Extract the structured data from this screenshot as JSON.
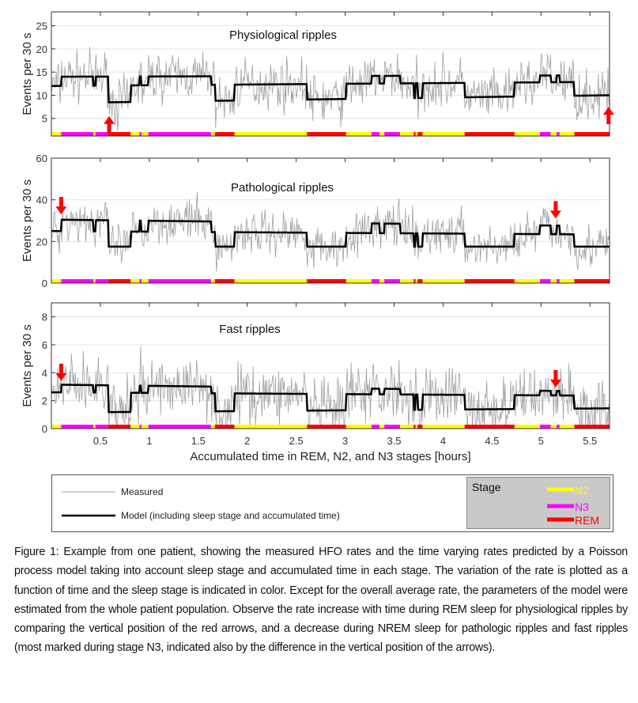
{
  "figure": {
    "caption": " Figure 1: Example from one patient, showing the measured HFO rates and the time varying rates predicted by a Poisson process model taking into account sleep stage and accumulated time in each stage. The variation of the rate is plotted as a function of time and the sleep stage is indicated in color. Except for the overall average rate, the parameters of the model were estimated from the whole patient population. Observe the rate increase with time during REM sleep for physiological ripples by comparing the vertical position of the red arrows, and a decrease during NREM sleep for pathologic ripples and fast ripples (most marked during stage N3, indicated also by the difference in the vertical position of the arrows)."
  },
  "legend": {
    "measured_label": "Measured",
    "model_label": "Model (including sleep stage and accumulated time)",
    "stage_title": "Stage",
    "stages": [
      {
        "label": "N2",
        "color": "#ffff00"
      },
      {
        "label": "N3",
        "color": "#ff00ff"
      },
      {
        "label": "REM",
        "color": "#ff0000"
      }
    ],
    "measured_color": "#a0a0a0",
    "model_color": "#000000"
  },
  "chart_data": [
    {
      "type": "line",
      "title": "Physiological ripples",
      "ylabel": "Events per 30 s",
      "xlabel": "",
      "xlim": [
        0,
        5.7
      ],
      "ylim": [
        1.2,
        28
      ],
      "yticks": [
        5,
        10,
        15,
        20,
        25
      ],
      "xticks": [
        0.5,
        1,
        1.5,
        2,
        2.5,
        3,
        3.5,
        4,
        4.5,
        5,
        5.5
      ],
      "show_xtick_labels": false,
      "grid": true,
      "model_levels": {
        "N2": [
          12.0,
          12.9
        ],
        "N3": [
          14.0,
          14.3
        ],
        "REM": [
          8.3,
          10.0
        ]
      },
      "measured_noise": 4.0,
      "arrows": [
        {
          "x": 0.59,
          "y": 5.5,
          "direction": "up"
        },
        {
          "x": 5.69,
          "y": 7.5,
          "direction": "up"
        }
      ]
    },
    {
      "type": "line",
      "title": "Pathological ripples",
      "ylabel": "Events per 30 s",
      "xlabel": "",
      "xlim": [
        0,
        5.7
      ],
      "ylim": [
        0,
        60
      ],
      "yticks": [
        0,
        20,
        40,
        60
      ],
      "xticks": [
        0.5,
        1,
        1.5,
        2,
        2.5,
        3,
        3.5,
        4,
        4.5,
        5,
        5.5
      ],
      "show_xtick_labels": false,
      "grid": true,
      "model_levels": {
        "N2": [
          25.0,
          23.3
        ],
        "N3": [
          30.5,
          27.3
        ],
        "REM": [
          17.5,
          17.5
        ]
      },
      "measured_noise": 8.0,
      "arrows": [
        {
          "x": 0.1,
          "y": 33,
          "direction": "down"
        },
        {
          "x": 5.15,
          "y": 31,
          "direction": "down"
        }
      ]
    },
    {
      "type": "line",
      "title": "Fast ripples",
      "ylabel": "Events per 30 s",
      "xlabel": "Accumulated time in REM, N2, and N3 stages [hours]",
      "xlim": [
        0,
        5.7
      ],
      "ylim": [
        0,
        9
      ],
      "yticks": [
        0,
        2,
        4,
        6,
        8
      ],
      "xticks": [
        0.5,
        1,
        1.5,
        2,
        2.5,
        3,
        3.5,
        4,
        4.5,
        5,
        5.5
      ],
      "xtick_labels": [
        "0.5",
        "1",
        "1.5",
        "2",
        "2.5",
        "3",
        "3.5",
        "4",
        "4.5",
        "5",
        "5.5"
      ],
      "show_xtick_labels": true,
      "grid": true,
      "model_levels": {
        "N2": [
          2.6,
          2.35
        ],
        "N3": [
          3.15,
          2.65
        ],
        "REM": [
          1.15,
          1.45
        ]
      },
      "measured_noise": 1.6,
      "arrows": [
        {
          "x": 0.1,
          "y": 3.4,
          "direction": "down"
        },
        {
          "x": 5.15,
          "y": 2.95,
          "direction": "down"
        }
      ]
    }
  ],
  "stage_sequence": [
    {
      "stage": "N2",
      "start": 0.0,
      "end": 0.1
    },
    {
      "stage": "N3",
      "start": 0.1,
      "end": 0.43
    },
    {
      "stage": "N2",
      "start": 0.43,
      "end": 0.45
    },
    {
      "stage": "N3",
      "start": 0.45,
      "end": 0.58
    },
    {
      "stage": "REM",
      "start": 0.58,
      "end": 0.81
    },
    {
      "stage": "N2",
      "start": 0.81,
      "end": 0.9
    },
    {
      "stage": "N3",
      "start": 0.9,
      "end": 0.92
    },
    {
      "stage": "N2",
      "start": 0.92,
      "end": 0.99
    },
    {
      "stage": "N3",
      "start": 0.99,
      "end": 1.63
    },
    {
      "stage": "N2",
      "start": 1.63,
      "end": 1.67
    },
    {
      "stage": "REM",
      "start": 1.67,
      "end": 1.87
    },
    {
      "stage": "N2",
      "start": 1.87,
      "end": 2.61
    },
    {
      "stage": "REM",
      "start": 2.61,
      "end": 3.01
    },
    {
      "stage": "N2",
      "start": 3.01,
      "end": 3.27
    },
    {
      "stage": "N3",
      "start": 3.27,
      "end": 3.35
    },
    {
      "stage": "N2",
      "start": 3.35,
      "end": 3.4
    },
    {
      "stage": "N3",
      "start": 3.4,
      "end": 3.56
    },
    {
      "stage": "N2",
      "start": 3.56,
      "end": 3.7
    },
    {
      "stage": "REM",
      "start": 3.7,
      "end": 3.72
    },
    {
      "stage": "N2",
      "start": 3.72,
      "end": 3.74
    },
    {
      "stage": "REM",
      "start": 3.74,
      "end": 3.79
    },
    {
      "stage": "N2",
      "start": 3.79,
      "end": 4.22
    },
    {
      "stage": "REM",
      "start": 4.22,
      "end": 4.73
    },
    {
      "stage": "N2",
      "start": 4.73,
      "end": 4.99
    },
    {
      "stage": "N3",
      "start": 4.99,
      "end": 5.1
    },
    {
      "stage": "N2",
      "start": 5.1,
      "end": 5.16
    },
    {
      "stage": "N3",
      "start": 5.16,
      "end": 5.19
    },
    {
      "stage": "N2",
      "start": 5.19,
      "end": 5.34
    },
    {
      "stage": "REM",
      "start": 5.34,
      "end": 5.73
    }
  ]
}
